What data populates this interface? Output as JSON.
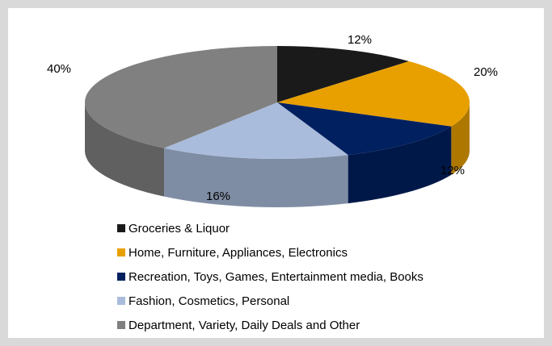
{
  "chart_data": {
    "type": "pie3d",
    "categories": [
      "Groceries & Liquor",
      "Home, Furniture, Appliances, Electronics",
      "Recreation, Toys, Games, Entertainment media, Books",
      "Fashion, Cosmetics, Personal",
      "Department, Variety, Daily Deals  and Other"
    ],
    "values": [
      12,
      20,
      12,
      16,
      40
    ],
    "value_labels": [
      "12%",
      "20%",
      "12%",
      "16%",
      "40%"
    ],
    "colors": [
      "#1a1a1a",
      "#e8a000",
      "#002060",
      "#a9bcdb",
      "#808080"
    ],
    "legend": "bottom"
  }
}
